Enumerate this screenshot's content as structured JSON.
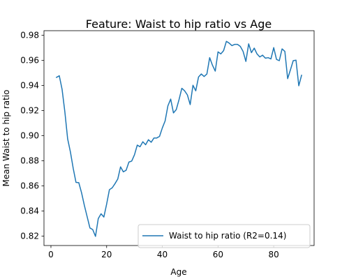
{
  "chart_data": {
    "type": "line",
    "title": "Feature: Waist to hip ratio vs Age",
    "xlabel": "Age",
    "ylabel": "Mean Waist to hip ratio",
    "xlim": [
      -2.5,
      94.5
    ],
    "ylim": [
      0.8125,
      0.9837
    ],
    "xticks": [
      0,
      20,
      40,
      60,
      80
    ],
    "yticks": [
      0.82,
      0.84,
      0.86,
      0.88,
      0.9,
      0.92,
      0.94,
      0.96,
      0.98
    ],
    "ytick_labels": [
      "0.82",
      "0.84",
      "0.86",
      "0.88",
      "0.90",
      "0.92",
      "0.94",
      "0.96",
      "0.98"
    ],
    "grid": false,
    "legend_position": "lower right",
    "series": [
      {
        "name": "Waist to hip ratio (R2=0.14)",
        "color": "#1f77b4",
        "points": [
          [
            2,
            0.9465
          ],
          [
            3,
            0.9478
          ],
          [
            4,
            0.937
          ],
          [
            5,
            0.919
          ],
          [
            6,
            0.8975
          ],
          [
            7,
            0.887
          ],
          [
            8,
            0.874
          ],
          [
            9,
            0.8628
          ],
          [
            10,
            0.8626
          ],
          [
            11,
            0.8545
          ],
          [
            12,
            0.8445
          ],
          [
            13,
            0.8355
          ],
          [
            14,
            0.8265
          ],
          [
            15,
            0.8252
          ],
          [
            16,
            0.8198
          ],
          [
            17,
            0.834
          ],
          [
            18,
            0.8378
          ],
          [
            19,
            0.8352
          ],
          [
            20,
            0.8455
          ],
          [
            21,
            0.857
          ],
          [
            22,
            0.8585
          ],
          [
            23,
            0.8618
          ],
          [
            24,
            0.8655
          ],
          [
            25,
            0.8752
          ],
          [
            26,
            0.8712
          ],
          [
            27,
            0.8725
          ],
          [
            28,
            0.879
          ],
          [
            29,
            0.8798
          ],
          [
            30,
            0.8848
          ],
          [
            31,
            0.8925
          ],
          [
            32,
            0.8912
          ],
          [
            33,
            0.8952
          ],
          [
            34,
            0.8928
          ],
          [
            35,
            0.8968
          ],
          [
            36,
            0.8948
          ],
          [
            37,
            0.8982
          ],
          [
            38,
            0.8982
          ],
          [
            39,
            0.8995
          ],
          [
            40,
            0.9062
          ],
          [
            41,
            0.9118
          ],
          [
            42,
            0.9238
          ],
          [
            43,
            0.9292
          ],
          [
            44,
            0.9182
          ],
          [
            45,
            0.9208
          ],
          [
            46,
            0.9288
          ],
          [
            47,
            0.9378
          ],
          [
            48,
            0.9358
          ],
          [
            49,
            0.9325
          ],
          [
            50,
            0.9248
          ],
          [
            51,
            0.9402
          ],
          [
            52,
            0.9358
          ],
          [
            53,
            0.9468
          ],
          [
            54,
            0.9492
          ],
          [
            55,
            0.9472
          ],
          [
            56,
            0.9492
          ],
          [
            57,
            0.9622
          ],
          [
            58,
            0.9562
          ],
          [
            59,
            0.9515
          ],
          [
            60,
            0.9668
          ],
          [
            61,
            0.9652
          ],
          [
            62,
            0.9678
          ],
          [
            63,
            0.9752
          ],
          [
            64,
            0.9738
          ],
          [
            65,
            0.9718
          ],
          [
            66,
            0.9728
          ],
          [
            67,
            0.9728
          ],
          [
            68,
            0.9712
          ],
          [
            69,
            0.9672
          ],
          [
            70,
            0.9592
          ],
          [
            71,
            0.9732
          ],
          [
            72,
            0.9662
          ],
          [
            73,
            0.9698
          ],
          [
            74,
            0.9652
          ],
          [
            75,
            0.9628
          ],
          [
            76,
            0.9642
          ],
          [
            77,
            0.9618
          ],
          [
            78,
            0.9622
          ],
          [
            79,
            0.9612
          ],
          [
            80,
            0.9702
          ],
          [
            81,
            0.9608
          ],
          [
            82,
            0.9598
          ],
          [
            83,
            0.9692
          ],
          [
            84,
            0.9672
          ],
          [
            85,
            0.9455
          ],
          [
            86,
            0.9525
          ],
          [
            87,
            0.9598
          ],
          [
            88,
            0.9602
          ],
          [
            89,
            0.9398
          ],
          [
            90,
            0.9482
          ]
        ]
      }
    ]
  }
}
